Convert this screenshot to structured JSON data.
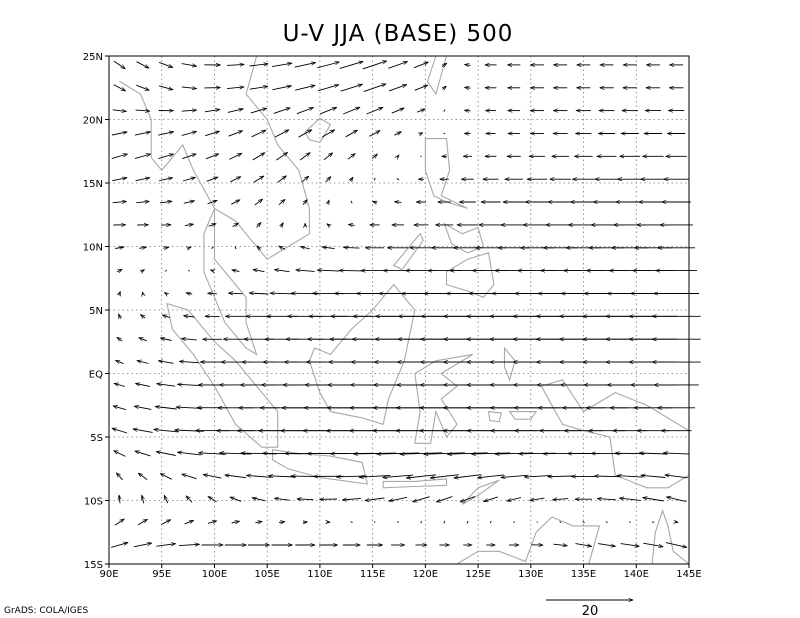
{
  "chart_data": {
    "type": "vector",
    "title": "U-V JJA (BASE) 500",
    "xlabel": "",
    "ylabel": "",
    "x_ticks": [
      "90E",
      "95E",
      "100E",
      "105E",
      "110E",
      "115E",
      "120E",
      "125E",
      "130E",
      "135E",
      "140E",
      "145E"
    ],
    "y_ticks": [
      "25N",
      "20N",
      "15N",
      "10N",
      "5N",
      "EQ",
      "5S",
      "10S",
      "15S"
    ],
    "xlim": [
      90,
      145
    ],
    "ylim": [
      -15,
      25
    ],
    "grid": true,
    "grid_style": "dotted",
    "vector_field": {
      "lon_start": 91,
      "lon_step": 2.2,
      "lon_count": 25,
      "lat_start": -13.5,
      "lat_step": 1.8,
      "lat_count": 22,
      "sample_rows": [
        {
          "lat": 23,
          "u": [
            4,
            5,
            6,
            7,
            8,
            9,
            5,
            -4,
            -5,
            -5,
            -5,
            -5
          ],
          "v": [
            -3,
            -2,
            0,
            1,
            2,
            3,
            2,
            0,
            0,
            0,
            0,
            0
          ]
        },
        {
          "lat": 18,
          "u": [
            6,
            6,
            5,
            5,
            4,
            3,
            0,
            -3,
            -5,
            -6,
            -7,
            -7
          ],
          "v": [
            2,
            2,
            2,
            3,
            3,
            2,
            0,
            0,
            0,
            0,
            0,
            0
          ]
        },
        {
          "lat": 12,
          "u": [
            5,
            4,
            3,
            2,
            0,
            -3,
            -5,
            -8,
            -10,
            -11,
            -12,
            -12
          ],
          "v": [
            0,
            0,
            1,
            2,
            1,
            0,
            0,
            0,
            0,
            0,
            0,
            0
          ]
        },
        {
          "lat": 5,
          "u": [
            0,
            -2,
            -5,
            -10,
            -14,
            -16,
            -17,
            -18,
            -18,
            -18,
            -18,
            -18
          ],
          "v": [
            2,
            1,
            0,
            0,
            0,
            0,
            0,
            0,
            0,
            0,
            0,
            0
          ]
        },
        {
          "lat": 0,
          "u": [
            -3,
            -6,
            -10,
            -14,
            -17,
            -18,
            -18,
            -18,
            -18,
            -18,
            -18,
            -18
          ],
          "v": [
            1,
            1,
            0,
            0,
            0,
            0,
            0,
            0,
            0,
            0,
            0,
            0
          ]
        },
        {
          "lat": -5,
          "u": [
            -5,
            -9,
            -13,
            -17,
            -19,
            -19,
            -19,
            -18,
            -17,
            -14,
            -12,
            -10
          ],
          "v": [
            2,
            1,
            0,
            0,
            0,
            0,
            0,
            0,
            0,
            0,
            0,
            0
          ]
        },
        {
          "lat": -10,
          "u": [
            0,
            -1,
            -3,
            -5,
            -6,
            -7,
            -6,
            -5,
            -5,
            -6,
            -8,
            -7
          ],
          "v": [
            3,
            3,
            2,
            1,
            0,
            -1,
            -2,
            -2,
            -1,
            0,
            1,
            2
          ]
        },
        {
          "lat": -13,
          "u": [
            6,
            7,
            8,
            8,
            7,
            6,
            4,
            3,
            4,
            6,
            7,
            8
          ],
          "v": [
            2,
            1,
            0,
            0,
            0,
            0,
            0,
            0,
            0,
            -1,
            -1,
            -2
          ]
        }
      ]
    },
    "reference_vector": {
      "value": "20"
    }
  },
  "footer": {
    "credit": "GrADS: COLA/IGES"
  },
  "colors": {
    "axis": "#000000",
    "grid": "#7a7a7a",
    "coast": "#a8a8a8",
    "arrow": "#000000"
  }
}
